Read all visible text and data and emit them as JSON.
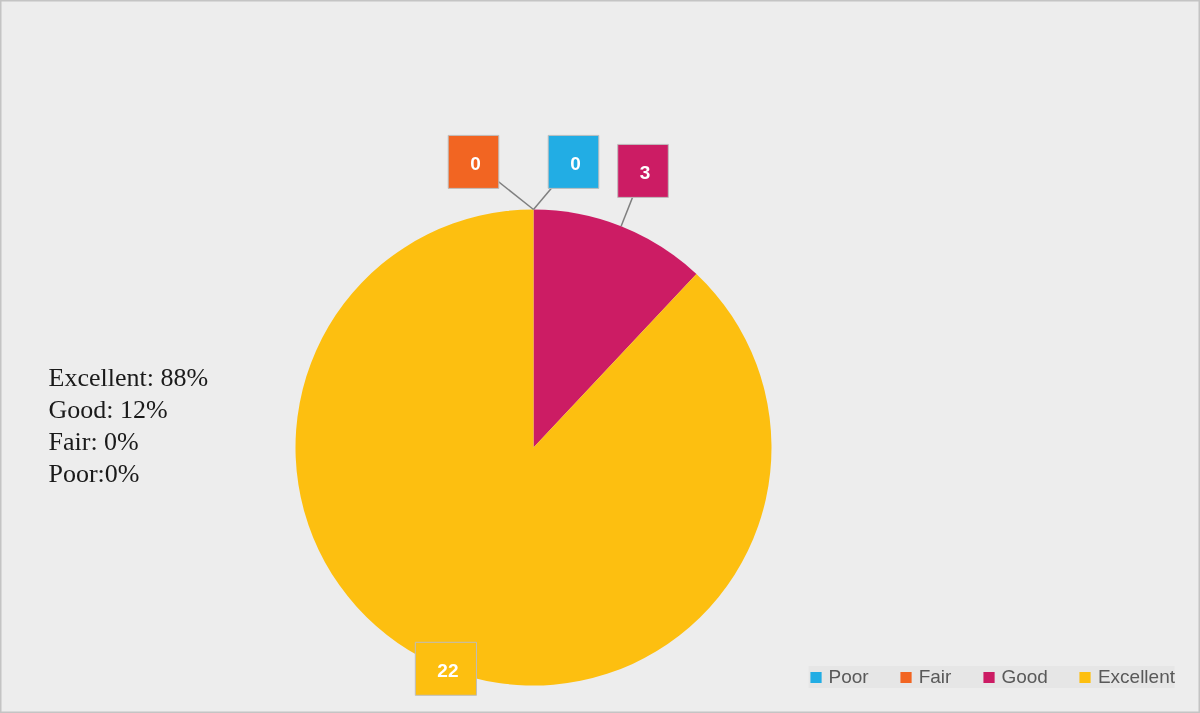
{
  "chart_data": {
    "type": "pie",
    "categories": [
      "Poor",
      "Fair",
      "Good",
      "Excellent"
    ],
    "values": [
      0,
      0,
      3,
      22
    ],
    "value_labels": [
      "0",
      "0",
      "3",
      "22"
    ],
    "colors": [
      "#22ade4",
      "#f26522",
      "#cc1c64",
      "#fdbf10"
    ],
    "legend": "bottom right",
    "annotations": [
      "Excellent: 88%",
      "Good:  12%",
      "Fair: 0%",
      "Poor:0%"
    ]
  }
}
